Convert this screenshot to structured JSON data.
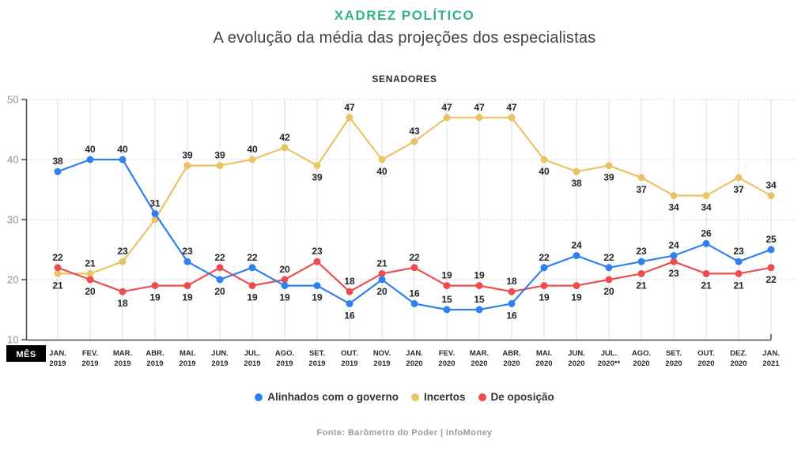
{
  "header": {
    "title": "XADREZ POLÍTICO",
    "subtitle": "A evolução da média das projeções dos especialistas"
  },
  "colors": {
    "title_green": "#2fb57d",
    "aligned_blue": "#2f80ed",
    "uncertain_yellow": "#eac464",
    "opposition_red": "#ee4d50",
    "axis": "#4a4a4a",
    "gridline": "#dedede",
    "dotted_gridline": "#cfcfcf"
  },
  "chart_data": {
    "type": "line",
    "title": "SENADORES",
    "x_axis_label": "MÊS",
    "ylim": [
      10,
      50
    ],
    "yticks": [
      50,
      40,
      30,
      20,
      10
    ],
    "grid": true,
    "legend_position": "bottom",
    "categories": [
      "JAN. 2019",
      "FEV. 2019",
      "MAR. 2019",
      "ABR. 2019",
      "MAI. 2019",
      "JUN. 2019",
      "JUL. 2019",
      "AGO. 2019",
      "SET. 2019",
      "OUT. 2019",
      "NOV. 2019",
      "JAN. 2020",
      "FEV. 2020",
      "MAR. 2020",
      "ABR. 2020",
      "MAI. 2020",
      "JUN. 2020",
      "JUL. 2020**",
      "AGO. 2020",
      "SET. 2020",
      "OUT. 2020",
      "DEZ. 2020",
      "JAN. 2021"
    ],
    "series": [
      {
        "name": "Alinhados com o governo",
        "color": "#2f80ed",
        "values": [
          38,
          40,
          40,
          31,
          23,
          20,
          22,
          19,
          19,
          16,
          20,
          16,
          15,
          15,
          16,
          22,
          24,
          22,
          23,
          24,
          26,
          23,
          25
        ],
        "label_positions": [
          "a",
          "a",
          "a",
          "a",
          "a",
          "b",
          "a",
          "b",
          "b",
          "b",
          "b",
          "a",
          "a",
          "a",
          "b",
          "a",
          "a",
          "a",
          "a",
          "a",
          "a",
          "a",
          "a"
        ]
      },
      {
        "name": "Incertos",
        "color": "#eac464",
        "values": [
          21,
          21,
          23,
          30,
          39,
          39,
          40,
          42,
          39,
          47,
          40,
          43,
          47,
          47,
          47,
          40,
          38,
          39,
          37,
          34,
          34,
          37,
          34
        ],
        "label_positions": [
          "b",
          "a",
          "a",
          "h",
          "a",
          "a",
          "a",
          "a",
          "b",
          "a",
          "b",
          "a",
          "a",
          "a",
          "a",
          "b",
          "b",
          "b",
          "b",
          "b",
          "b",
          "b",
          "a"
        ]
      },
      {
        "name": "De oposição",
        "color": "#ee4d50",
        "values": [
          22,
          20,
          18,
          19,
          19,
          22,
          19,
          20,
          23,
          18,
          21,
          22,
          19,
          19,
          18,
          19,
          19,
          20,
          21,
          23,
          21,
          21,
          22
        ],
        "label_positions": [
          "a",
          "b",
          "b",
          "b",
          "b",
          "a",
          "b",
          "a",
          "a",
          "a",
          "a",
          "a",
          "a",
          "a",
          "a",
          "b",
          "b",
          "b",
          "b",
          "b",
          "b",
          "b",
          "b"
        ]
      }
    ]
  },
  "footer": {
    "source": "Fonte: Barômetro do Poder | InfoMoney"
  }
}
